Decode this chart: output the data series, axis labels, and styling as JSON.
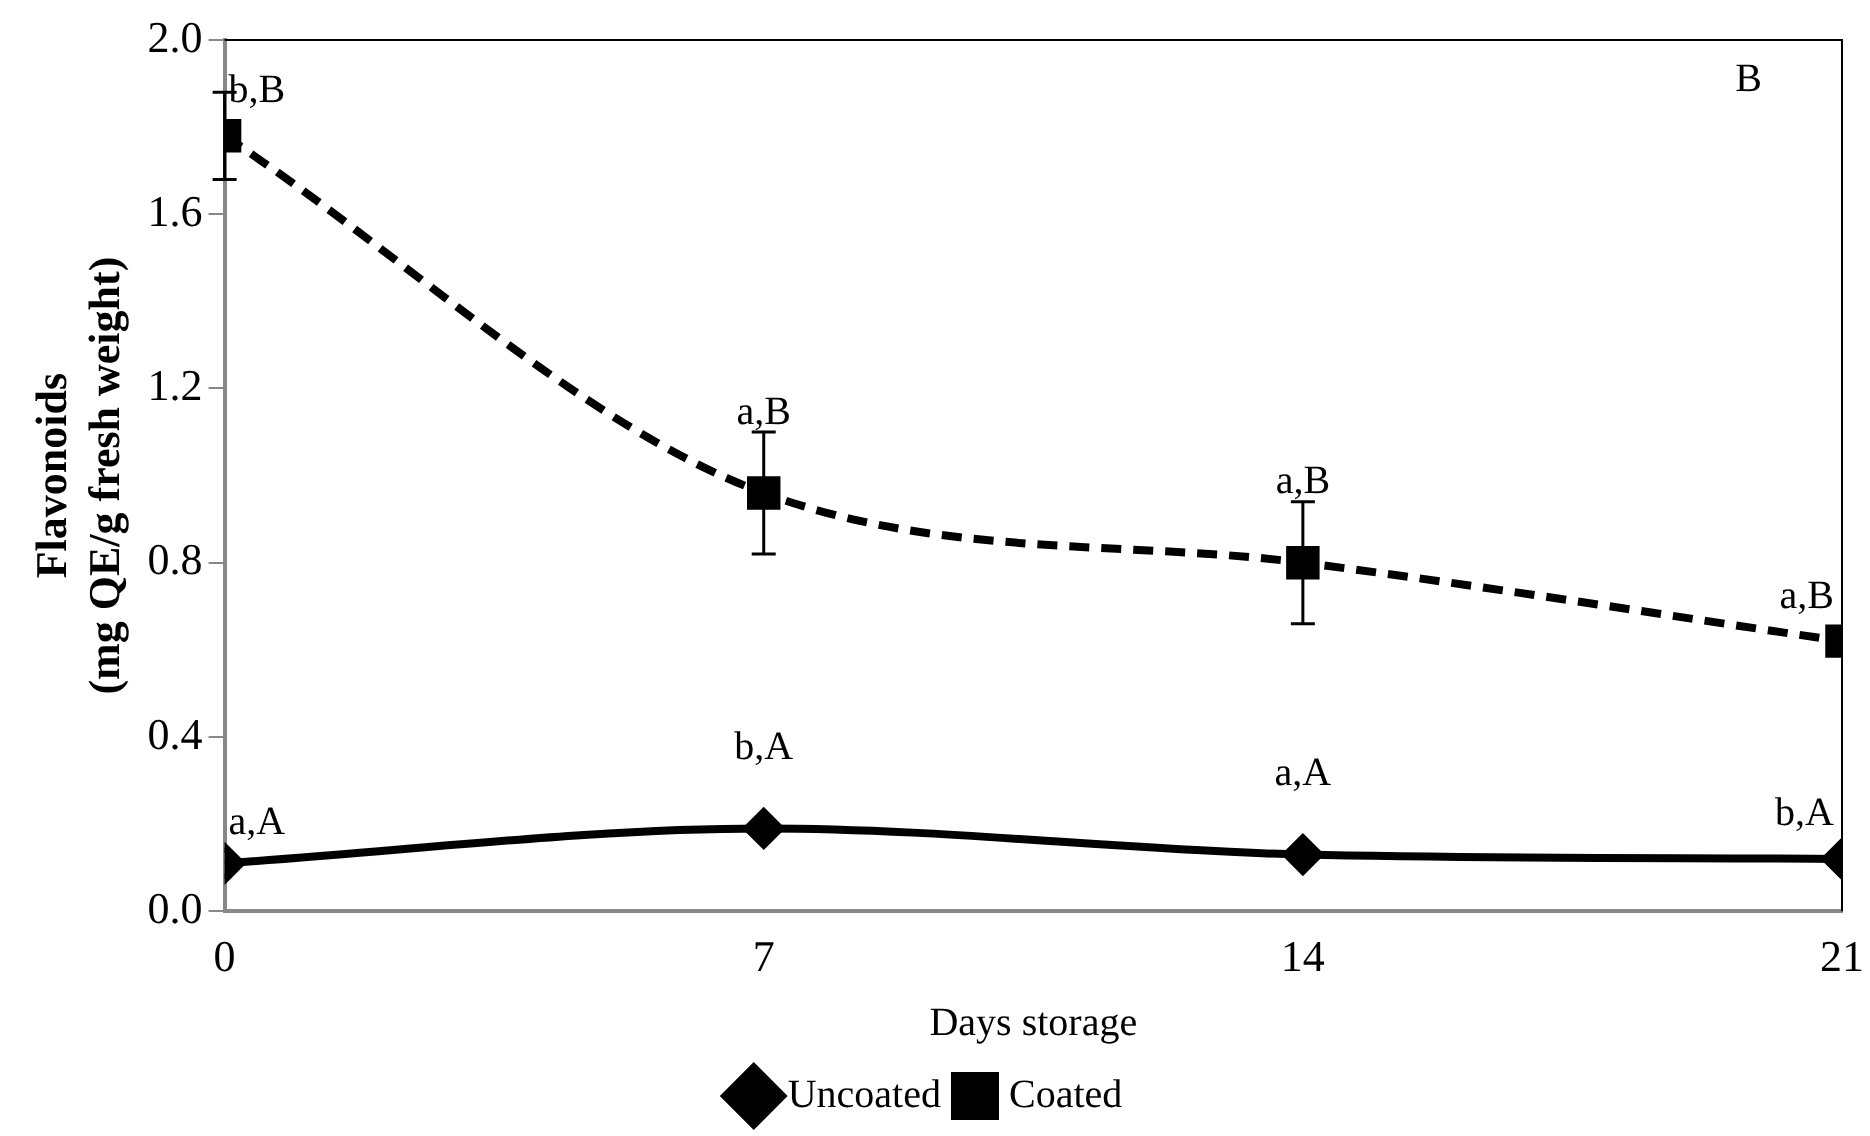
{
  "chart_data": {
    "type": "line",
    "xlabel": "Days storage",
    "ylabel": "Flavonoids\n(mg QE/g fresh weight)",
    "x": [
      0,
      7,
      14,
      21
    ],
    "series": [
      {
        "name": "Uncoated",
        "color": "#000000",
        "values": [
          0.11,
          0.19,
          0.13,
          0.12
        ],
        "marker": "diamond",
        "line_style": "solid"
      },
      {
        "name": "Coated",
        "color": "#000000",
        "values": [
          1.78,
          0.96,
          0.8,
          0.62
        ],
        "errors": [
          0.1,
          0.14,
          0.14,
          null
        ],
        "marker": "square",
        "line_style": "dashed"
      }
    ],
    "xlim": [
      0,
      21
    ],
    "xticks": [
      0,
      7,
      14,
      21
    ],
    "ylim": [
      0,
      2
    ],
    "yticks": [
      {
        "value": 0,
        "label": "0.0"
      },
      0.4,
      0.8,
      1.2,
      1.6,
      {
        "value": 2,
        "label": "2.0"
      }
    ],
    "grid": false,
    "legend": "bottom",
    "annotations": [
      {
        "text": "a,A",
        "x": 0,
        "y": 0.11
      },
      {
        "text": "b,A",
        "x": 7,
        "y": 0.19
      },
      {
        "text": "a,A",
        "x": 14,
        "y": 0.13
      },
      {
        "text": "b,A",
        "x": 21,
        "y": 0.12
      },
      {
        "text": "b,B",
        "x": 0,
        "y": 1.78
      },
      {
        "text": "a,B",
        "x": 7,
        "y": 0.96
      },
      {
        "text": "a,B",
        "x": 14,
        "y": 0.8
      },
      {
        "text": "a,B",
        "x": 21,
        "y": 0.62
      },
      "B"
    ]
  }
}
